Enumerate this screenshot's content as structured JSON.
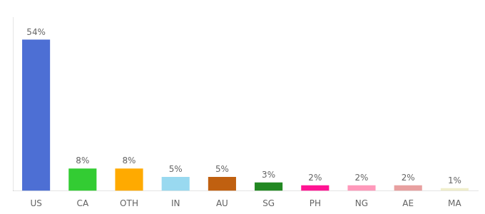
{
  "chart_data": {
    "type": "bar",
    "categories": [
      "US",
      "CA",
      "OTH",
      "IN",
      "AU",
      "SG",
      "PH",
      "NG",
      "AE",
      "MA"
    ],
    "values": [
      54,
      8,
      8,
      5,
      5,
      3,
      2,
      2,
      2,
      1
    ],
    "value_labels": [
      "54%",
      "8%",
      "8%",
      "5%",
      "5%",
      "3%",
      "2%",
      "2%",
      "2%",
      "1%"
    ],
    "colors": [
      "#4d6fd4",
      "#33cc33",
      "#ffaa00",
      "#99d9f0",
      "#c06010",
      "#228822",
      "#ff1493",
      "#ff99bb",
      "#e8a0a0",
      "#f0eecc"
    ],
    "ylim": [
      0,
      62
    ],
    "grid": false,
    "data_labels": true,
    "tick_labels": "x"
  }
}
